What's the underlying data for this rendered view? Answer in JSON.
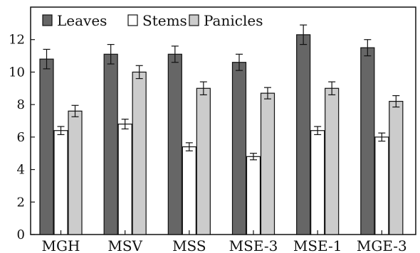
{
  "chart_data": {
    "type": "bar",
    "title": "",
    "xlabel": "",
    "ylabel": "",
    "categories": [
      "MGH",
      "MSV",
      "MSS",
      "MSE-3",
      "MSE-1",
      "MGE-3"
    ],
    "ylim": [
      0,
      14
    ],
    "yticks": [
      0,
      2,
      4,
      6,
      8,
      10,
      12
    ],
    "grid": false,
    "legend_position": "top-left",
    "error_bars": true,
    "series": [
      {
        "name": "Leaves",
        "color": "#666666",
        "values": [
          10.8,
          11.1,
          11.1,
          10.6,
          12.3,
          11.5
        ],
        "errors": [
          0.6,
          0.6,
          0.5,
          0.5,
          0.6,
          0.5
        ]
      },
      {
        "name": "Stems",
        "color": "#ffffff",
        "values": [
          6.4,
          6.8,
          5.4,
          4.8,
          6.4,
          6.0
        ],
        "errors": [
          0.25,
          0.3,
          0.25,
          0.2,
          0.25,
          0.25
        ]
      },
      {
        "name": "Panicles",
        "color": "#cccccc",
        "values": [
          7.6,
          10.0,
          9.0,
          8.7,
          9.0,
          8.2
        ],
        "errors": [
          0.35,
          0.4,
          0.4,
          0.35,
          0.4,
          0.35
        ]
      }
    ]
  }
}
